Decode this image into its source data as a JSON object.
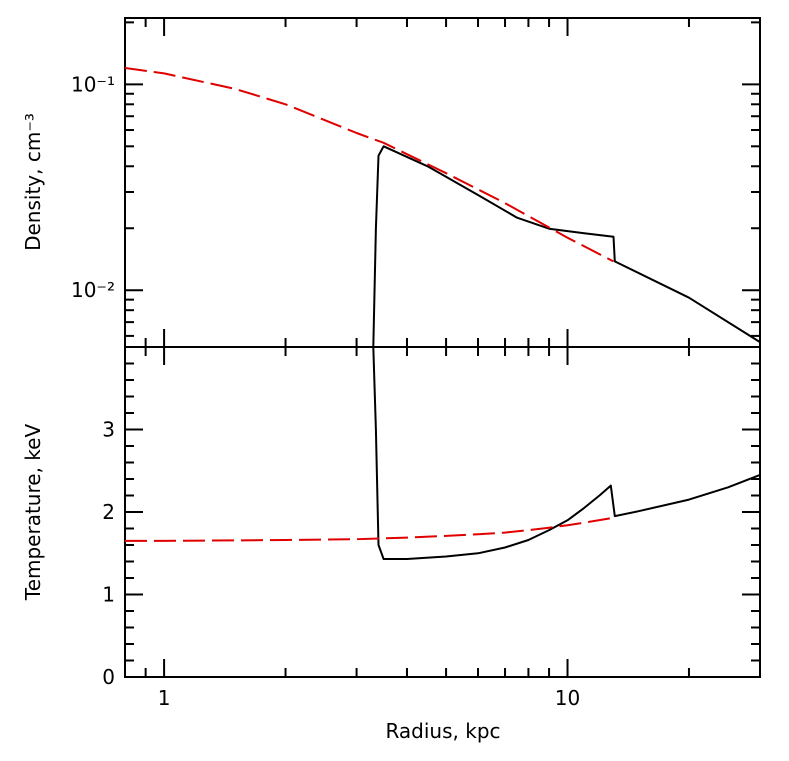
{
  "chart_data": [
    {
      "type": "line",
      "panel": "top",
      "xlabel": "",
      "ylabel": "Density, cm⁻³",
      "xscale": "log",
      "yscale": "log",
      "xlim": [
        0.8,
        30
      ],
      "ylim": [
        0.0053,
        0.21
      ],
      "x_ticks": [],
      "y_ticks": [
        {
          "value": 0.1,
          "label": "10⁻¹"
        },
        {
          "value": 0.01,
          "label": "10⁻²"
        }
      ],
      "grid": false,
      "legend": "none",
      "series": [
        {
          "color": "#000000",
          "style": "solid",
          "points": [
            [
              3.3,
              0.0053
            ],
            [
              3.35,
              0.02
            ],
            [
              3.4,
              0.045
            ],
            [
              3.5,
              0.05
            ],
            [
              4.5,
              0.04
            ],
            [
              6,
              0.029
            ],
            [
              7.5,
              0.0225
            ],
            [
              9,
              0.0199
            ],
            [
              11,
              0.0189
            ],
            [
              13,
              0.0182
            ],
            [
              13.1,
              0.0138
            ],
            [
              20,
              0.0092
            ],
            [
              30,
              0.0056
            ]
          ]
        },
        {
          "color": "#e00000",
          "style": "dashed",
          "points": [
            [
              0.8,
              0.12
            ],
            [
              1,
              0.113
            ],
            [
              1.5,
              0.095
            ],
            [
              2,
              0.08
            ],
            [
              3,
              0.058
            ],
            [
              3.5,
              0.052
            ],
            [
              5,
              0.037
            ],
            [
              7,
              0.0265
            ],
            [
              10,
              0.018
            ],
            [
              13,
              0.0138
            ]
          ]
        }
      ]
    },
    {
      "type": "line",
      "panel": "bottom",
      "xlabel": "Radius, kpc",
      "ylabel": "Temperature, keV",
      "xscale": "log",
      "yscale": "linear",
      "xlim": [
        0.8,
        30
      ],
      "ylim": [
        0,
        4
      ],
      "x_ticks": [
        {
          "value": 1,
          "label": "1"
        },
        {
          "value": 10,
          "label": "10"
        }
      ],
      "y_ticks": [
        {
          "value": 0,
          "label": "0"
        },
        {
          "value": 1,
          "label": "1"
        },
        {
          "value": 2,
          "label": "2"
        },
        {
          "value": 3,
          "label": "3"
        }
      ],
      "grid": false,
      "legend": "none",
      "series": [
        {
          "color": "#000000",
          "style": "solid",
          "points": [
            [
              3.3,
              4.0
            ],
            [
              3.35,
              3.0
            ],
            [
              3.4,
              1.6
            ],
            [
              3.5,
              1.43
            ],
            [
              4,
              1.43
            ],
            [
              5,
              1.46
            ],
            [
              6,
              1.5
            ],
            [
              7,
              1.57
            ],
            [
              8,
              1.66
            ],
            [
              9,
              1.78
            ],
            [
              10,
              1.9
            ],
            [
              11,
              2.05
            ],
            [
              12,
              2.2
            ],
            [
              12.8,
              2.32
            ],
            [
              13.1,
              1.95
            ],
            [
              15,
              2.01
            ],
            [
              20,
              2.15
            ],
            [
              25,
              2.3
            ],
            [
              30,
              2.45
            ]
          ]
        },
        {
          "color": "#e00000",
          "style": "dashed",
          "points": [
            [
              0.8,
              1.65
            ],
            [
              1,
              1.65
            ],
            [
              2,
              1.66
            ],
            [
              3,
              1.67
            ],
            [
              4,
              1.69
            ],
            [
              5,
              1.71
            ],
            [
              6,
              1.73
            ],
            [
              7,
              1.75
            ],
            [
              8,
              1.78
            ],
            [
              9,
              1.81
            ],
            [
              10,
              1.84
            ],
            [
              11,
              1.87
            ],
            [
              13,
              1.93
            ]
          ]
        }
      ]
    }
  ]
}
